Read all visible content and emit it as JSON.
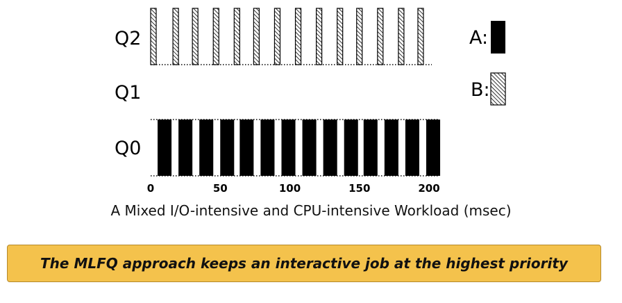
{
  "chart_data": {
    "type": "bar",
    "queues": [
      "Q2",
      "Q1",
      "Q0"
    ],
    "xticks": [
      "0",
      "50",
      "100",
      "150",
      "200"
    ],
    "xlim": [
      0,
      200
    ],
    "caption": "A Mixed I/O-intensive and CPU-intensive Workload (msec)",
    "legend": [
      {
        "label": "A:",
        "pattern": "solid",
        "color": "#000000"
      },
      {
        "label": "B:",
        "pattern": "hatched",
        "color": "#000000"
      }
    ],
    "series": [
      {
        "name": "A",
        "queue": "Q0",
        "starts": [
          5,
          20,
          35,
          50,
          64,
          79,
          94,
          109,
          124,
          139,
          153,
          168,
          183,
          198
        ],
        "duration": 10
      },
      {
        "name": "B",
        "queue": "Q2",
        "starts": [
          0,
          16,
          30,
          45,
          60,
          74,
          89,
          104,
          119,
          134,
          148,
          163,
          178,
          192
        ],
        "duration": 4
      }
    ]
  },
  "banner": {
    "text": "The MLFQ approach keeps an interactive job at the highest priority"
  }
}
